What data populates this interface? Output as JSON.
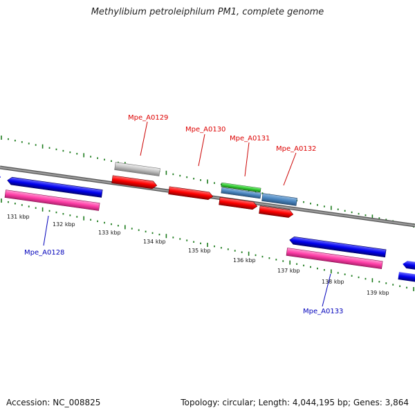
{
  "title": "Methylibium petroleiphilum PM1, complete genome",
  "footer": {
    "accession": "Accession: NC_008825",
    "summary": "Topology: circular; Length: 4,044,195 bp; Genes: 3,864"
  },
  "colors": {
    "forward_cds": "#ff0000",
    "reverse_cds": "#0000ee",
    "reverse_rna": "#ff3fa8",
    "pseudo": "#c0c0c0",
    "misc": "#4a86c0",
    "green_feature": "#33cc33",
    "backbone": "#808080",
    "ticks": "#1a7a1a",
    "forward_label": "#dd0000",
    "reverse_label": "#0000bb"
  },
  "kbp_labels": [
    "131 kbp",
    "132 kbp",
    "133 kbp",
    "134 kbp",
    "135 kbp",
    "136 kbp",
    "137 kbp",
    "138 kbp",
    "139 kbp"
  ],
  "gene_labels": [
    "Mpe_A0128",
    "Mpe_A0129",
    "Mpe_A0130",
    "Mpe_A0131",
    "Mpe_A0132",
    "Mpe_A0133"
  ]
}
